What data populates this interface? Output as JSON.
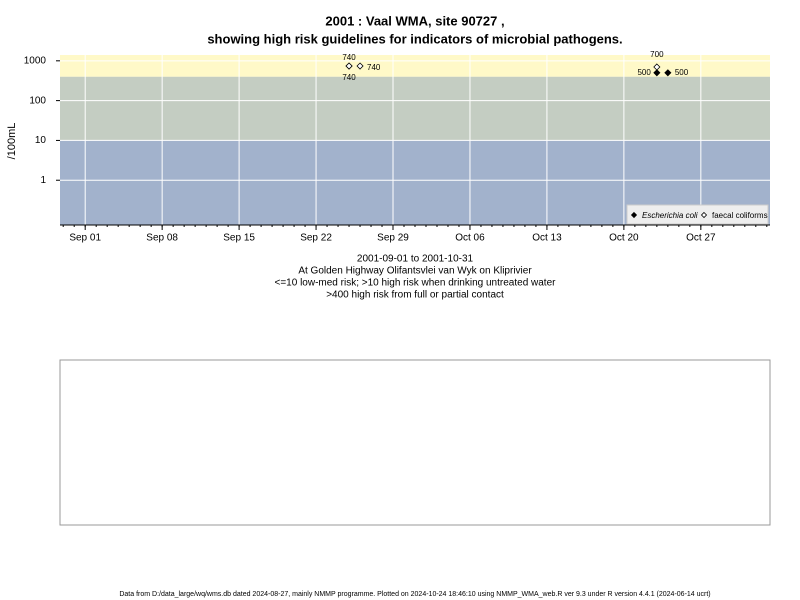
{
  "chart_data": {
    "type": "scatter",
    "title": "2001 : Vaal WMA, site 90727 ,",
    "subtitle": "showing high risk guidelines for indicators of microbial pathogens.",
    "ylabel": "/100mL",
    "log_y": true,
    "grid": true,
    "legend_corner": "bottom-right",
    "xlim": [
      "2001-08-29T17:00",
      "2001-11-02T07:00"
    ],
    "xticks": [
      {
        "value": "2001-09-01",
        "label": "Sep 01"
      },
      {
        "value": "2001-09-08",
        "label": "Sep 08"
      },
      {
        "value": "2001-09-15",
        "label": "Sep 15"
      },
      {
        "value": "2001-09-22",
        "label": "Sep 22"
      },
      {
        "value": "2001-09-29",
        "label": "Sep 29"
      },
      {
        "value": "2001-10-06",
        "label": "Oct 06"
      },
      {
        "value": "2001-10-13",
        "label": "Oct 13"
      },
      {
        "value": "2001-10-20",
        "label": "Oct 20"
      },
      {
        "value": "2001-10-27",
        "label": "Oct 27"
      }
    ],
    "ylim": [
      0.075,
      1400
    ],
    "yticks": [
      1,
      10,
      100,
      1000
    ],
    "band_limits": [
      10,
      400
    ],
    "band_colors": [
      "#a2b2cc",
      "#c4cdc2",
      "#fff9c8"
    ],
    "series": [
      {
        "name": "Escherichia coli",
        "marker": "filled",
        "color": "#000000",
        "x": [
          "2001-09-25",
          "2001-10-23",
          "2001-10-24"
        ],
        "values": [
          740,
          500,
          500
        ]
      },
      {
        "name": "faecal coliforms",
        "marker": "open",
        "color": "#000000",
        "x": [
          "2001-09-25",
          "2001-09-26",
          "2001-10-23"
        ],
        "values": [
          740,
          740,
          700
        ]
      }
    ],
    "notes": [
      "2001-09-01 to 2001-10-31",
      "At Golden Highway Olifantsvlei van Wyk on Kliprivier",
      "<=10 low-med risk; >10 high risk when drinking untreated water",
      ">400 high risk from full or partial contact"
    ],
    "footer": "Data from D:/data_large/wq/wms.db dated 2024-08-27, mainly NMMP programme. Plotted on 2024-10-24 18:46:10 using NMMP_WMA_web.R ver 9.3 under R version 4.4.1 (2024-06-14 ucrt)"
  }
}
